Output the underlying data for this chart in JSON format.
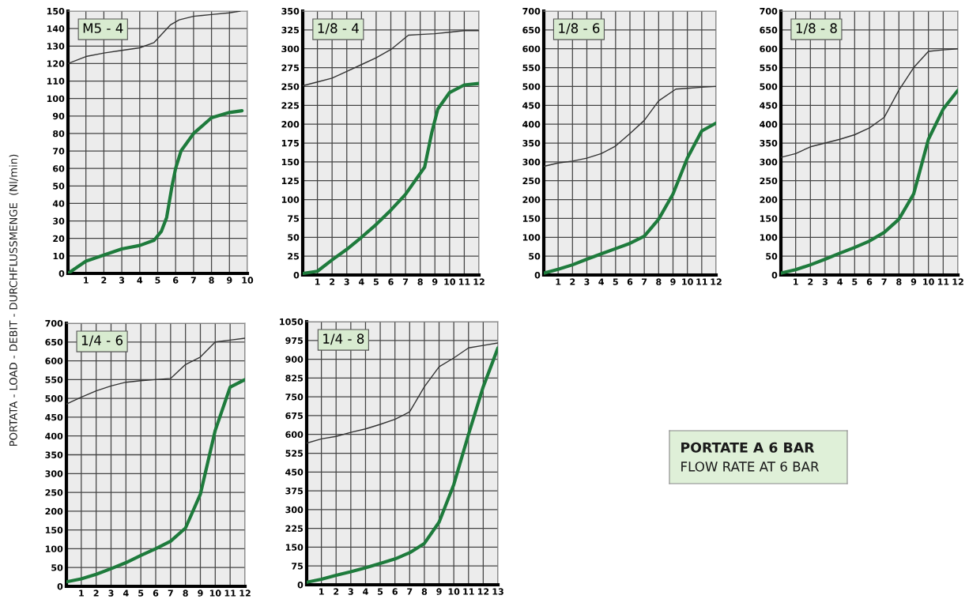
{
  "chart_data": [
    {
      "type": "line",
      "ylabel": "PORTATA - LOAD - DEBIT - DURCHFLUSSMENGE  (Nl/min)",
      "annotations": [
        "M5 - 4"
      ],
      "xlim": [
        0,
        10
      ],
      "xticks": [
        1,
        2,
        3,
        4,
        5,
        6,
        7,
        8,
        9,
        10
      ],
      "ylim": [
        0,
        150
      ],
      "yticks": [
        0,
        10,
        20,
        30,
        40,
        50,
        60,
        70,
        80,
        90,
        100,
        110,
        120,
        130,
        140,
        150
      ],
      "grid": true,
      "series": [
        {
          "color": "#333333",
          "x": [
            0,
            1,
            2,
            3,
            4,
            4.8,
            5.7,
            6.2,
            7,
            8,
            9,
            9.6
          ],
          "values": [
            120,
            124,
            126,
            127.5,
            129,
            132,
            142,
            145,
            147,
            148,
            149,
            150
          ]
        },
        {
          "color": "#1e7b3c",
          "x": [
            0,
            1,
            2,
            3,
            4,
            4.8,
            5.2,
            5.5,
            5.8,
            6.0,
            6.3,
            7,
            8,
            9,
            9.7
          ],
          "values": [
            0,
            7,
            10.5,
            14,
            16,
            19,
            24,
            32,
            50,
            60,
            70,
            80,
            89,
            92,
            93
          ]
        }
      ]
    },
    {
      "type": "line",
      "annotations": [
        "1/8 - 4"
      ],
      "xlim": [
        0,
        12
      ],
      "xticks": [
        1,
        2,
        3,
        4,
        5,
        6,
        7,
        8,
        9,
        10,
        11,
        12
      ],
      "ylim": [
        0,
        350
      ],
      "yticks": [
        0,
        25,
        50,
        75,
        100,
        125,
        150,
        175,
        200,
        225,
        250,
        275,
        300,
        325,
        350
      ],
      "grid": true,
      "series": [
        {
          "color": "#333333",
          "x": [
            0,
            1,
            2,
            3,
            4,
            5,
            6,
            7.2,
            8,
            9,
            10,
            11,
            12
          ],
          "values": [
            251,
            256,
            261,
            270,
            279,
            288,
            299,
            318,
            319,
            320,
            322,
            324,
            324
          ]
        },
        {
          "color": "#1e7b3c",
          "x": [
            0,
            1,
            2,
            3,
            4,
            5,
            6,
            7,
            8.3,
            8.8,
            9.2,
            10,
            11,
            12
          ],
          "values": [
            2,
            5,
            20,
            34,
            50,
            67,
            86,
            107,
            143,
            190,
            220,
            242,
            252,
            254
          ]
        }
      ]
    },
    {
      "type": "line",
      "annotations": [
        "1/8 - 6"
      ],
      "xlim": [
        0,
        12
      ],
      "xticks": [
        1,
        2,
        3,
        4,
        5,
        6,
        7,
        8,
        9,
        10,
        11,
        12
      ],
      "ylim": [
        0,
        700
      ],
      "yticks": [
        0,
        50,
        100,
        150,
        200,
        250,
        300,
        350,
        400,
        450,
        500,
        550,
        600,
        650,
        700
      ],
      "grid": true,
      "series": [
        {
          "color": "#333333",
          "x": [
            0,
            1,
            2,
            3,
            4,
            5,
            6,
            7,
            8,
            9.2,
            10,
            11,
            12
          ],
          "values": [
            288,
            297,
            302,
            310,
            322,
            342,
            375,
            410,
            462,
            493,
            495,
            498,
            500
          ]
        },
        {
          "color": "#1e7b3c",
          "x": [
            0,
            1,
            2,
            3,
            4,
            5,
            6,
            7,
            8,
            9,
            10,
            11,
            12
          ],
          "values": [
            5,
            15,
            27,
            42,
            56,
            70,
            84,
            103,
            148,
            215,
            310,
            382,
            403
          ]
        }
      ]
    },
    {
      "type": "line",
      "annotations": [
        "1/8 - 8"
      ],
      "xlim": [
        0,
        12
      ],
      "xticks": [
        1,
        2,
        3,
        4,
        5,
        6,
        7,
        8,
        9,
        10,
        11,
        12
      ],
      "ylim": [
        0,
        700
      ],
      "yticks": [
        0,
        50,
        100,
        150,
        200,
        250,
        300,
        350,
        400,
        450,
        500,
        550,
        600,
        650,
        700
      ],
      "grid": true,
      "series": [
        {
          "color": "#333333",
          "x": [
            0,
            1,
            2,
            3,
            4,
            5,
            6,
            7,
            8,
            9,
            10,
            11,
            12
          ],
          "values": [
            312,
            322,
            340,
            350,
            360,
            372,
            390,
            418,
            490,
            550,
            593,
            597,
            600
          ]
        },
        {
          "color": "#1e7b3c",
          "x": [
            0,
            1,
            2,
            3,
            4,
            5,
            6,
            7,
            8,
            9,
            10,
            11,
            12
          ],
          "values": [
            5,
            14,
            27,
            42,
            58,
            73,
            90,
            113,
            148,
            215,
            360,
            440,
            490
          ]
        }
      ]
    },
    {
      "type": "line",
      "annotations": [
        "1/4 - 6"
      ],
      "xlim": [
        0,
        12
      ],
      "xticks": [
        1,
        2,
        3,
        4,
        5,
        6,
        7,
        8,
        9,
        10,
        11,
        12
      ],
      "ylim": [
        0,
        700
      ],
      "yticks": [
        0,
        50,
        100,
        150,
        200,
        250,
        300,
        350,
        400,
        450,
        500,
        550,
        600,
        650,
        700
      ],
      "grid": true,
      "series": [
        {
          "color": "#333333",
          "x": [
            0,
            1,
            2,
            3,
            4,
            5,
            6,
            7,
            8,
            9,
            10,
            11,
            12
          ],
          "values": [
            485,
            503,
            520,
            533,
            543,
            547,
            550,
            553,
            590,
            610,
            650,
            655,
            660
          ]
        },
        {
          "color": "#1e7b3c",
          "x": [
            0,
            1,
            2,
            3,
            4,
            5,
            6,
            7,
            8,
            9,
            10,
            11,
            12
          ],
          "values": [
            12,
            20,
            32,
            47,
            63,
            82,
            100,
            120,
            155,
            245,
            415,
            530,
            550
          ]
        }
      ]
    },
    {
      "type": "line",
      "annotations": [
        "1/4 - 8"
      ],
      "xlim": [
        0,
        13
      ],
      "xticks": [
        1,
        2,
        3,
        4,
        5,
        6,
        7,
        8,
        9,
        10,
        11,
        12,
        13
      ],
      "ylim": [
        0,
        1050
      ],
      "yticks": [
        0,
        75,
        150,
        225,
        300,
        375,
        450,
        525,
        600,
        675,
        750,
        825,
        900,
        975,
        1050
      ],
      "grid": true,
      "series": [
        {
          "color": "#333333",
          "x": [
            0,
            1,
            2,
            3,
            4,
            5,
            6,
            7,
            8,
            9,
            10,
            11,
            12,
            13
          ],
          "values": [
            565,
            582,
            592,
            608,
            622,
            640,
            660,
            690,
            790,
            870,
            905,
            945,
            955,
            965
          ]
        },
        {
          "color": "#1e7b3c",
          "x": [
            0,
            1,
            2,
            3,
            4,
            5,
            6,
            7,
            8,
            9,
            10,
            11,
            12,
            13
          ],
          "values": [
            10,
            22,
            38,
            52,
            68,
            85,
            103,
            128,
            165,
            250,
            400,
            600,
            790,
            945
          ]
        }
      ]
    },
    {
      "type": "other",
      "title": "PORTATE A 6 BAR",
      "subtitle": "FLOW RATE AT 6 BAR"
    }
  ]
}
